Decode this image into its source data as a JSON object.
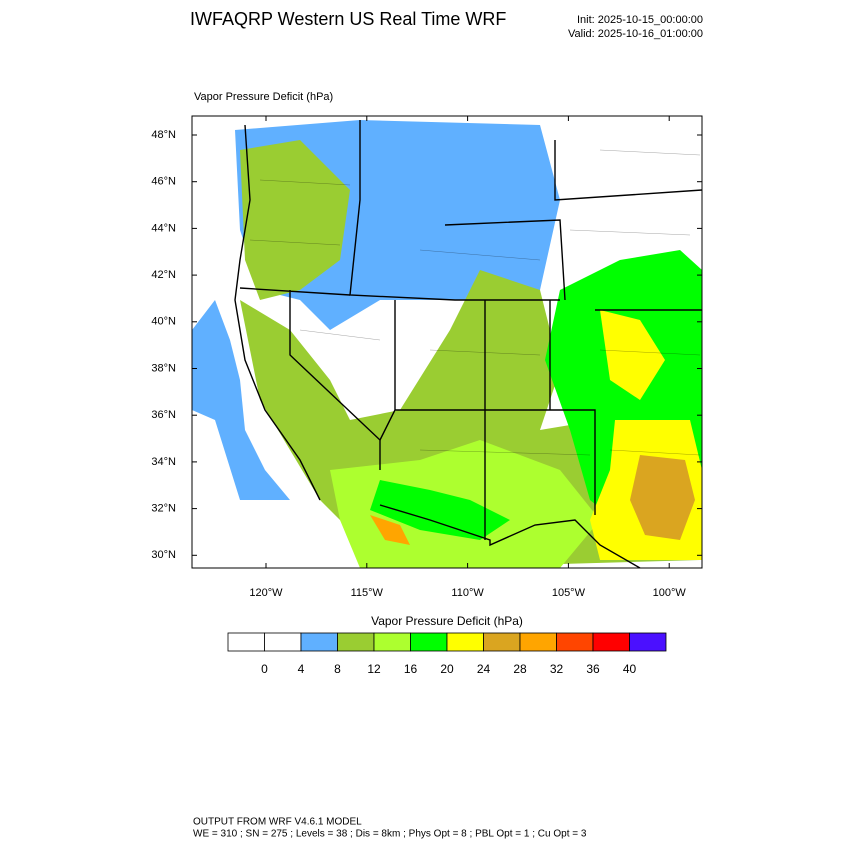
{
  "header": {
    "title": "IWFAQRP Western US Real Time WRF",
    "init": "Init: 2025-10-15_00:00:00",
    "valid": "Valid: 2025-10-16_01:00:00"
  },
  "map": {
    "label": "Vapor Pressure Deficit   (hPa)",
    "lat_labels": [
      "48°N",
      "46°N",
      "44°N",
      "42°N",
      "40°N",
      "38°N",
      "36°N",
      "34°N",
      "32°N",
      "30°N"
    ],
    "lon_labels": [
      "120°W",
      "115°W",
      "110°W",
      "105°W",
      "100°W"
    ]
  },
  "colorbar": {
    "title": "Vapor Pressure Deficit  (hPa)",
    "colors": [
      "#ffffff",
      "#ffffff",
      "#60b0ff",
      "#9acd32",
      "#adff2f",
      "#00ff00",
      "#ffff00",
      "#daa520",
      "#ffa500",
      "#ff4500",
      "#ff0000",
      "#4b10ff"
    ],
    "labels": [
      0,
      4,
      8,
      12,
      16,
      20,
      24,
      28,
      32,
      36,
      40
    ]
  },
  "footer": {
    "lines": [
      "OUTPUT FROM WRF V4.6.1 MODEL",
      "WE = 310 ; SN = 275 ; Levels = 38 ; Dis = 8km ; Phys Opt = 8 ; PBL Opt = 1 ; Cu Opt = 3"
    ]
  }
}
